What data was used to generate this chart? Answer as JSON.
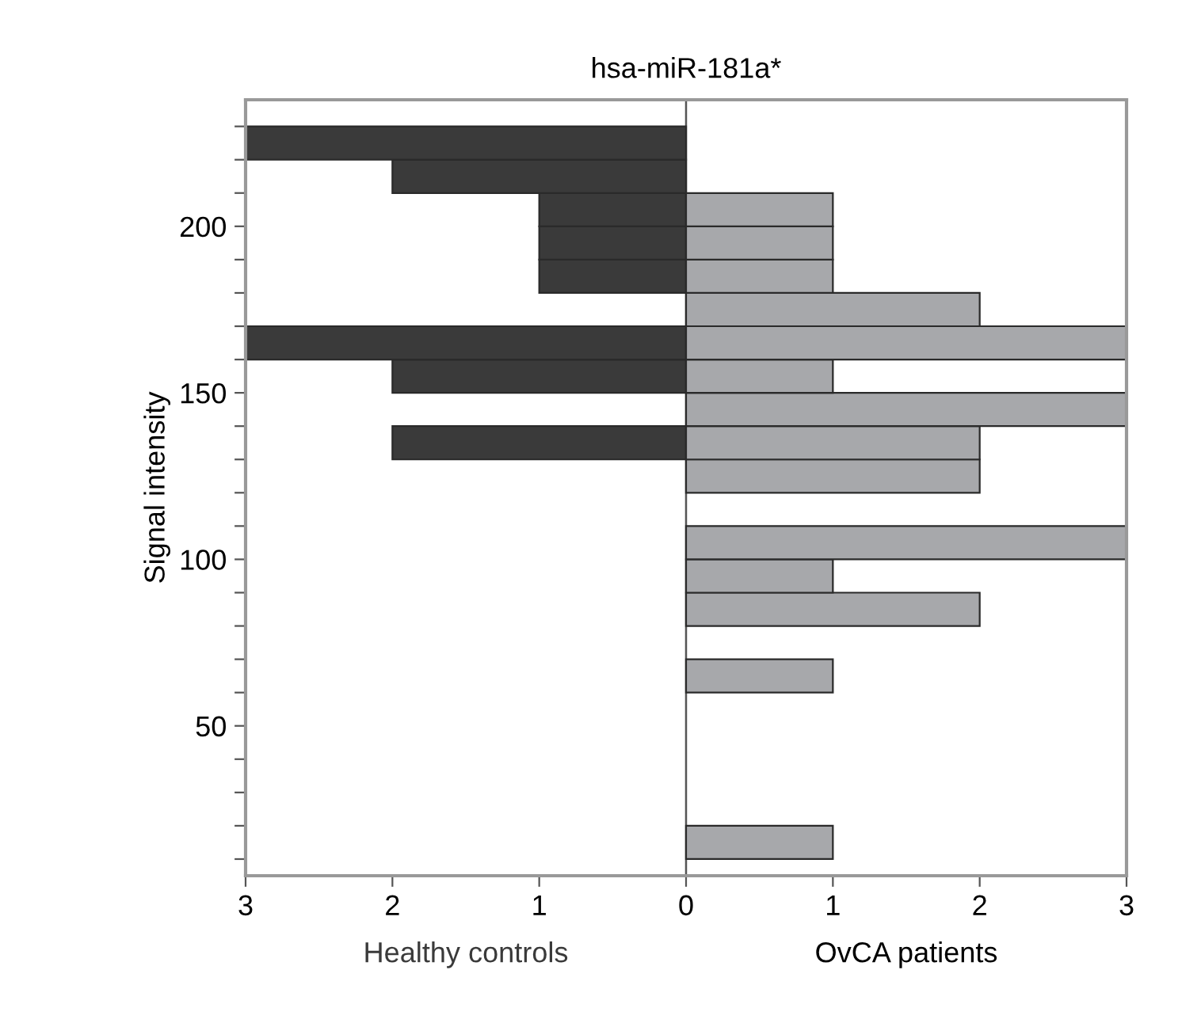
{
  "chart_data": {
    "type": "histogram",
    "orientation": "horizontal",
    "title": "hsa-miR-181a*",
    "ylabel": "Signal intensity",
    "bins": [
      10,
      20,
      30,
      40,
      50,
      60,
      70,
      80,
      90,
      100,
      110,
      120,
      130,
      140,
      150,
      160,
      170,
      180,
      190,
      200,
      210,
      220,
      230
    ],
    "series": [
      {
        "name": "Healthy controls",
        "color": "#3a3a3a",
        "values": [
          0,
          0,
          0,
          0,
          0,
          0,
          0,
          0,
          0,
          0,
          0,
          0,
          -2,
          0,
          -2,
          -3,
          0,
          -1,
          -1,
          -1,
          -2,
          -3
        ]
      },
      {
        "name": "OvCA patients",
        "color": "#a7a8ab",
        "values": [
          1,
          0,
          0,
          0,
          0,
          1,
          0,
          2,
          1,
          3,
          0,
          2,
          2,
          3,
          1,
          3,
          2,
          1,
          1,
          1,
          0,
          0
        ]
      }
    ],
    "xlim": [
      -3,
      3
    ],
    "xticks": [
      {
        "value": -3,
        "label": "3"
      },
      {
        "value": -2,
        "label": "2"
      },
      {
        "value": -1,
        "label": "1"
      },
      0,
      1,
      2,
      3
    ],
    "ylim": [
      5,
      238
    ],
    "yticks": [
      {
        "value": 10,
        "label": null
      },
      {
        "value": 20,
        "label": null
      },
      {
        "value": 30,
        "label": null
      },
      {
        "value": 40,
        "label": null
      },
      50,
      {
        "value": 60,
        "label": null
      },
      {
        "value": 70,
        "label": null
      },
      {
        "value": 80,
        "label": null
      },
      {
        "value": 90,
        "label": null
      },
      100,
      {
        "value": 110,
        "label": null
      },
      {
        "value": 120,
        "label": null
      },
      {
        "value": 130,
        "label": null
      },
      {
        "value": 140,
        "label": null
      },
      150,
      {
        "value": 160,
        "label": null
      },
      {
        "value": 170,
        "label": null
      },
      {
        "value": 180,
        "label": null
      },
      {
        "value": 190,
        "label": null
      },
      200,
      {
        "value": 210,
        "label": null
      },
      {
        "value": 220,
        "label": null
      },
      {
        "value": 230,
        "label": null
      }
    ],
    "ref_lines": [
      {
        "axis": "x",
        "value": 0,
        "color": "#555555"
      }
    ],
    "grid": false,
    "legend": false
  }
}
